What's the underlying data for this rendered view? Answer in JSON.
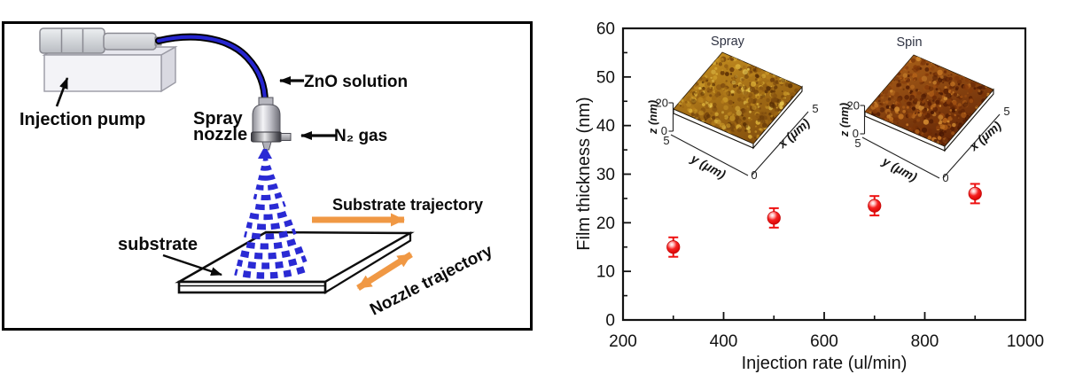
{
  "figure": {
    "background": "#ffffff",
    "panel_border_color": "#000000"
  },
  "left_diagram": {
    "labels": {
      "injection_pump": "Injection pump",
      "spray_line1": "Spray",
      "spray_line2": "nozzle",
      "zno_solution": "ZnO solution",
      "n2_gas": "N₂ gas",
      "substrate": "substrate",
      "substrate_trajectory": "Substrate trajectory",
      "nozzle_trajectory": "Nozzle trajectory"
    },
    "colors": {
      "tube": "#2525cf",
      "spray": "#2a2ad4",
      "trajectory_arrow": "#f09844"
    }
  },
  "chart_data": {
    "type": "scatter",
    "xlabel": "Injection rate (ul/min)",
    "ylabel": "Film thickness (nm)",
    "xlim": [
      200,
      1000
    ],
    "ylim": [
      0,
      60
    ],
    "x": [
      300,
      500,
      700,
      900
    ],
    "y": [
      15,
      21,
      23.5,
      26
    ],
    "y_error": [
      2,
      2,
      2,
      2
    ],
    "x_tick_labels": [
      200,
      400,
      600,
      800,
      1000
    ],
    "x_minor_ticks": [
      300,
      500,
      700,
      900
    ],
    "y_tick_labels": [
      0,
      10,
      20,
      30,
      40,
      50,
      60
    ],
    "y_minor_ticks": [
      5,
      15,
      25,
      35,
      45,
      55
    ],
    "marker_color": "#ee1111",
    "marker_style": "sphere",
    "grid": false,
    "legend": null
  },
  "insets": [
    {
      "title": "Spray",
      "z_axis_label": "z (nm)",
      "z_tick_max": "20",
      "z_tick_min": "0",
      "y_axis_label": "y (μm)",
      "y_tick_start": "5",
      "y_tick_end": "0",
      "x_axis_label": "x (μm)",
      "x_tick_end": "5",
      "surface_gradient": [
        "#c08a1e",
        "#85500e"
      ],
      "surface_palette": [
        "#6e3e0a",
        "#8a5510",
        "#9f6812",
        "#b67f1c",
        "#c89626",
        "#d9ad36",
        "#e5c44e",
        "#7c4a0e",
        "#5c3206"
      ]
    },
    {
      "title": "Spin",
      "z_axis_label": "z (nm)",
      "z_tick_max": "20",
      "z_tick_min": "0",
      "y_axis_label": "y (μm)",
      "y_tick_start": "5",
      "y_tick_end": "0",
      "x_axis_label": "x (μm)",
      "x_tick_end": "5",
      "surface_gradient": [
        "#a65d18",
        "#632506"
      ],
      "surface_palette": [
        "#591f04",
        "#6f2d07",
        "#863c0b",
        "#9c4c10",
        "#b05f18",
        "#c27322",
        "#d18a30",
        "#4a1803",
        "#7a3408"
      ]
    }
  ]
}
